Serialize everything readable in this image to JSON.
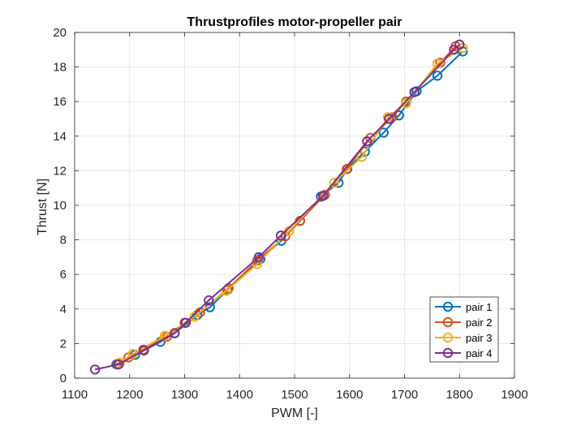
{
  "chart_data": {
    "type": "line",
    "title": "Thrustprofiles motor-propeller pair",
    "xlabel": "PWM [-]",
    "ylabel": "Thrust [N]",
    "xlim": [
      1100,
      1900
    ],
    "ylim": [
      0,
      20
    ],
    "xticks": [
      "1100",
      "1200",
      "1300",
      "1400",
      "1500",
      "1600",
      "1700",
      "1800",
      "1900"
    ],
    "yticks": [
      "0",
      "2",
      "4",
      "6",
      "8",
      "10",
      "12",
      "14",
      "16",
      "18",
      "20"
    ],
    "grid": true,
    "legend_position": "bottom-right",
    "marker": "circle",
    "series": [
      {
        "name": "pair 1",
        "color": "#0072BD",
        "points": [
          [
            1176,
            0.8
          ],
          [
            1210,
            1.35
          ],
          [
            1256,
            2.1
          ],
          [
            1282,
            2.6
          ],
          [
            1323,
            3.65
          ],
          [
            1346,
            4.1
          ],
          [
            1378,
            5.1
          ],
          [
            1438,
            6.9
          ],
          [
            1476,
            7.95
          ],
          [
            1510,
            9.1
          ],
          [
            1548,
            10.5
          ],
          [
            1580,
            11.3
          ],
          [
            1596,
            12.1
          ],
          [
            1628,
            13.1
          ],
          [
            1662,
            14.2
          ],
          [
            1690,
            15.2
          ],
          [
            1722,
            16.6
          ],
          [
            1760,
            17.5
          ],
          [
            1806,
            18.9
          ]
        ]
      },
      {
        "name": "pair 2",
        "color": "#D95319",
        "points": [
          [
            1178,
            0.8
          ],
          [
            1198,
            1.2
          ],
          [
            1225,
            1.65
          ],
          [
            1268,
            2.4
          ],
          [
            1300,
            3.2
          ],
          [
            1328,
            3.8
          ],
          [
            1380,
            5.2
          ],
          [
            1432,
            6.8
          ],
          [
            1483,
            8.2
          ],
          [
            1510,
            9.1
          ],
          [
            1555,
            10.6
          ],
          [
            1595,
            12.1
          ],
          [
            1638,
            13.9
          ],
          [
            1678,
            15.1
          ],
          [
            1703,
            16.0
          ],
          [
            1765,
            18.25
          ],
          [
            1793,
            19.2
          ]
        ]
      },
      {
        "name": "pair 3",
        "color": "#EDB120",
        "points": [
          [
            1183,
            0.9
          ],
          [
            1206,
            1.4
          ],
          [
            1264,
            2.45
          ],
          [
            1318,
            3.55
          ],
          [
            1376,
            5.05
          ],
          [
            1432,
            6.6
          ],
          [
            1490,
            8.5
          ],
          [
            1572,
            11.3
          ],
          [
            1622,
            12.8
          ],
          [
            1670,
            15.1
          ],
          [
            1703,
            15.9
          ],
          [
            1760,
            18.2
          ],
          [
            1806,
            19.1
          ]
        ]
      },
      {
        "name": "pair 4",
        "color": "#7E2F8E",
        "points": [
          [
            1137,
            0.5
          ],
          [
            1180,
            0.8
          ],
          [
            1226,
            1.6
          ],
          [
            1282,
            2.6
          ],
          [
            1302,
            3.2
          ],
          [
            1344,
            4.5
          ],
          [
            1435,
            7.0
          ],
          [
            1475,
            8.25
          ],
          [
            1552,
            10.55
          ],
          [
            1632,
            13.7
          ],
          [
            1672,
            15.0
          ],
          [
            1718,
            16.55
          ],
          [
            1790,
            19.0
          ],
          [
            1800,
            19.3
          ]
        ]
      }
    ]
  }
}
